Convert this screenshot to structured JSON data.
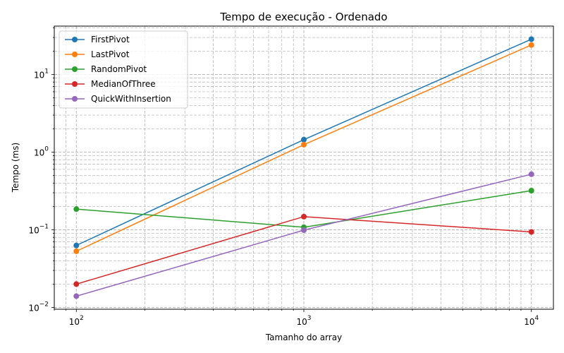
{
  "chart_data": {
    "type": "line",
    "title": "Tempo de execução - Ordenado",
    "xlabel": "Tamanho do array",
    "ylabel": "Tempo (ms)",
    "xscale": "log",
    "yscale": "log",
    "xlim": [
      80,
      12500
    ],
    "ylim": [
      0.0095,
      42
    ],
    "grid": true,
    "legend_position": "top-left",
    "x": [
      100,
      1000,
      10000
    ],
    "xticks": [
      {
        "value": 100,
        "base": "10",
        "exp": "2"
      },
      {
        "value": 1000,
        "base": "10",
        "exp": "3"
      },
      {
        "value": 10000,
        "base": "10",
        "exp": "4"
      }
    ],
    "yticks": [
      {
        "value": 0.01,
        "base": "10",
        "exp": "−2"
      },
      {
        "value": 0.1,
        "base": "10",
        "exp": "−1"
      },
      {
        "value": 1,
        "base": "10",
        "exp": "0"
      },
      {
        "value": 10,
        "base": "10",
        "exp": "1"
      }
    ],
    "series": [
      {
        "name": "FirstPivot",
        "color": "#1f77b4",
        "values": [
          0.063,
          1.45,
          28.5
        ]
      },
      {
        "name": "LastPivot",
        "color": "#ff7f0e",
        "values": [
          0.053,
          1.25,
          24.0
        ]
      },
      {
        "name": "RandomPivot",
        "color": "#2ca02c",
        "values": [
          0.185,
          0.108,
          0.32
        ]
      },
      {
        "name": "MedianOfThree",
        "color": "#d62728",
        "values": [
          0.02,
          0.148,
          0.094
        ]
      },
      {
        "name": "QuickWithInsertion",
        "color": "#9467bd",
        "values": [
          0.014,
          0.099,
          0.52
        ]
      }
    ]
  }
}
